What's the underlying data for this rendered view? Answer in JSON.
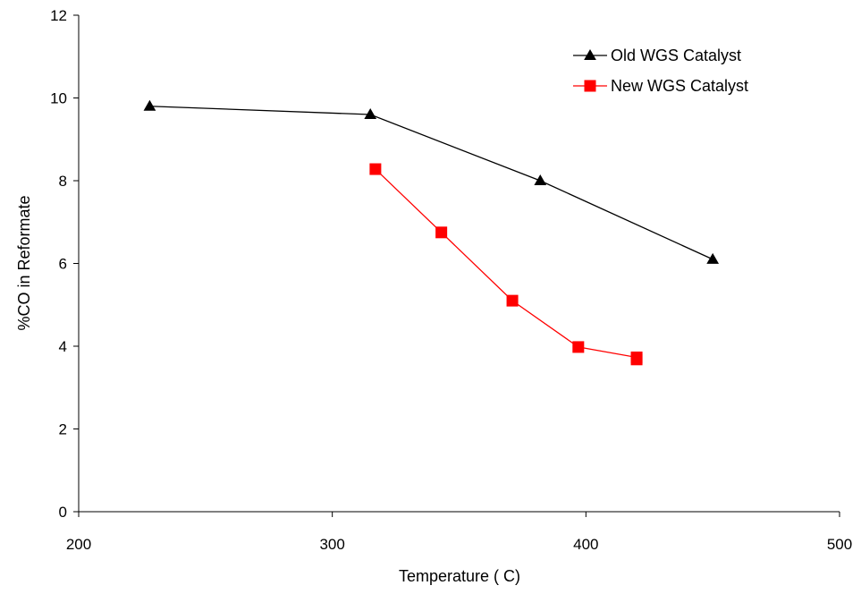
{
  "chart_data": {
    "type": "line",
    "title": "",
    "xlabel": "Temperature ( C)",
    "ylabel": "%CO in Reformate",
    "xlim": [
      200,
      500
    ],
    "ylim": [
      0,
      12
    ],
    "xticks": [
      200,
      300,
      400,
      500
    ],
    "yticks": [
      0,
      2,
      4,
      6,
      8,
      10,
      12
    ],
    "x_tick_labels": [
      "200",
      "300",
      "400",
      "500"
    ],
    "y_tick_labels": [
      "0",
      "2",
      "4",
      "6",
      "8",
      "10",
      "12"
    ],
    "grid": false,
    "legend_position": "top-right",
    "series": [
      {
        "name": "Old WGS Catalyst",
        "color": "#000000",
        "marker": "triangle",
        "points": [
          [
            228,
            9.8
          ],
          [
            315,
            9.6
          ],
          [
            382,
            8.0
          ],
          [
            450,
            6.1
          ]
        ]
      },
      {
        "name": "New WGS Catalyst",
        "color": "#ff0000",
        "marker": "square",
        "points": [
          [
            317,
            8.28
          ],
          [
            343,
            6.75
          ],
          [
            371,
            5.1
          ],
          [
            397,
            3.98
          ],
          [
            420,
            3.73
          ],
          [
            420,
            3.68
          ]
        ]
      }
    ]
  }
}
